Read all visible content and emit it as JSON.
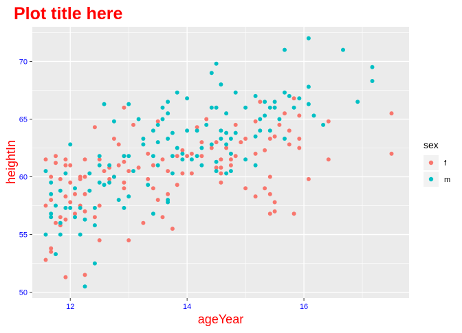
{
  "chart_data": {
    "type": "scatter",
    "title": "Plot title here",
    "xlabel": "ageYear",
    "ylabel": "heightIn",
    "xlim": [
      11.35,
      17.8
    ],
    "ylim": [
      49.5,
      73.0
    ],
    "xticks": [
      12,
      14,
      16
    ],
    "yticks": [
      50,
      55,
      60,
      65,
      70
    ],
    "grid": true,
    "legend": {
      "title": "sex",
      "position": "right",
      "entries": [
        "f",
        "m"
      ]
    },
    "colors": {
      "f": "#F8766D",
      "m": "#00BFC4",
      "title": "#FF0000",
      "axis_label": "#FF0000",
      "tick_label": "#0000FF",
      "panel": "#EBEBEB",
      "grid": "#FFFFFF"
    },
    "series": [
      {
        "name": "f",
        "points": [
          [
            11.58,
            52.8
          ],
          [
            11.58,
            57.5
          ],
          [
            11.58,
            61.5
          ],
          [
            11.67,
            53.5
          ],
          [
            11.67,
            53.8
          ],
          [
            11.67,
            58.0
          ],
          [
            11.67,
            60.0
          ],
          [
            11.75,
            56.0
          ],
          [
            11.75,
            61.2
          ],
          [
            11.75,
            61.8
          ],
          [
            11.83,
            55.8
          ],
          [
            11.83,
            56.5
          ],
          [
            11.83,
            59.8
          ],
          [
            11.92,
            51.3
          ],
          [
            11.92,
            56.3
          ],
          [
            11.92,
            58.3
          ],
          [
            11.92,
            61.0
          ],
          [
            11.92,
            61.5
          ],
          [
            12.0,
            57.8
          ],
          [
            12.0,
            59.5
          ],
          [
            12.0,
            61.0
          ],
          [
            12.08,
            56.8
          ],
          [
            12.08,
            58.5
          ],
          [
            12.17,
            57.5
          ],
          [
            12.17,
            59.8
          ],
          [
            12.17,
            60.0
          ],
          [
            12.25,
            51.5
          ],
          [
            12.25,
            57.0
          ],
          [
            12.25,
            58.5
          ],
          [
            12.25,
            60.0
          ],
          [
            12.25,
            61.5
          ],
          [
            12.42,
            56.5
          ],
          [
            12.42,
            64.3
          ],
          [
            12.5,
            54.5
          ],
          [
            12.5,
            57.5
          ],
          [
            12.5,
            61.5
          ],
          [
            12.58,
            60.5
          ],
          [
            12.67,
            59.8
          ],
          [
            12.67,
            60.8
          ],
          [
            12.75,
            60.0
          ],
          [
            12.75,
            63.3
          ],
          [
            12.83,
            61.0
          ],
          [
            12.83,
            62.8
          ],
          [
            12.92,
            59.0
          ],
          [
            12.92,
            59.5
          ],
          [
            12.92,
            61.3
          ],
          [
            12.92,
            61.8
          ],
          [
            12.92,
            66.0
          ],
          [
            13.0,
            54.5
          ],
          [
            13.0,
            60.5
          ],
          [
            13.08,
            64.5
          ],
          [
            13.17,
            60.8
          ],
          [
            13.25,
            56.0
          ],
          [
            13.33,
            59.8
          ],
          [
            13.33,
            62.0
          ],
          [
            13.42,
            59.0
          ],
          [
            13.42,
            61.0
          ],
          [
            13.5,
            58.0
          ],
          [
            13.5,
            64.8
          ],
          [
            13.58,
            56.5
          ],
          [
            13.58,
            61.5
          ],
          [
            13.67,
            58.5
          ],
          [
            13.67,
            60.5
          ],
          [
            13.75,
            55.5
          ],
          [
            13.83,
            59.3
          ],
          [
            13.83,
            61.8
          ],
          [
            13.92,
            60.3
          ],
          [
            13.92,
            62.3
          ],
          [
            14.0,
            61.8
          ],
          [
            14.08,
            60.3
          ],
          [
            14.08,
            62.0
          ],
          [
            14.17,
            64.3
          ],
          [
            14.25,
            61.8
          ],
          [
            14.25,
            63.0
          ],
          [
            14.33,
            65.0
          ],
          [
            14.42,
            62.5
          ],
          [
            14.5,
            60.8
          ],
          [
            14.5,
            63.0
          ],
          [
            14.58,
            59.5
          ],
          [
            14.58,
            60.3
          ],
          [
            14.58,
            60.8
          ],
          [
            14.58,
            61.5
          ],
          [
            14.67,
            62.5
          ],
          [
            14.75,
            61.0
          ],
          [
            14.75,
            61.5
          ],
          [
            14.75,
            62.0
          ],
          [
            14.83,
            61.8
          ],
          [
            14.83,
            64.5
          ],
          [
            14.92,
            63.0
          ],
          [
            15.0,
            59.0
          ],
          [
            15.0,
            63.3
          ],
          [
            15.17,
            58.3
          ],
          [
            15.17,
            62.0
          ],
          [
            15.17,
            64.8
          ],
          [
            15.25,
            66.5
          ],
          [
            15.33,
            59.0
          ],
          [
            15.33,
            62.3
          ],
          [
            15.42,
            56.8
          ],
          [
            15.42,
            58.5
          ],
          [
            15.42,
            60.0
          ],
          [
            15.42,
            63.3
          ],
          [
            15.5,
            57.0
          ],
          [
            15.5,
            57.8
          ],
          [
            15.5,
            63.5
          ],
          [
            15.58,
            64.5
          ],
          [
            15.67,
            65.5
          ],
          [
            15.75,
            62.8
          ],
          [
            15.75,
            64.0
          ],
          [
            15.83,
            56.8
          ],
          [
            15.83,
            66.8
          ],
          [
            15.92,
            62.5
          ],
          [
            15.92,
            63.3
          ],
          [
            15.92,
            65.3
          ],
          [
            16.08,
            59.8
          ],
          [
            16.42,
            61.5
          ],
          [
            16.42,
            64.8
          ],
          [
            17.5,
            62.0
          ],
          [
            17.5,
            65.5
          ]
        ]
      },
      {
        "name": "m",
        "points": [
          [
            11.58,
            55.0
          ],
          [
            11.58,
            60.5
          ],
          [
            11.67,
            56.5
          ],
          [
            11.67,
            56.8
          ],
          [
            11.67,
            58.5
          ],
          [
            11.67,
            59.5
          ],
          [
            11.75,
            53.3
          ],
          [
            11.75,
            57.5
          ],
          [
            11.83,
            55.0
          ],
          [
            11.83,
            56.0
          ],
          [
            11.83,
            58.8
          ],
          [
            11.92,
            57.3
          ],
          [
            11.92,
            60.3
          ],
          [
            12.0,
            57.3
          ],
          [
            12.0,
            62.8
          ],
          [
            12.08,
            56.5
          ],
          [
            12.08,
            59.0
          ],
          [
            12.17,
            55.0
          ],
          [
            12.17,
            57.3
          ],
          [
            12.25,
            50.5
          ],
          [
            12.25,
            56.3
          ],
          [
            12.33,
            58.8
          ],
          [
            12.33,
            60.3
          ],
          [
            12.42,
            52.5
          ],
          [
            12.42,
            55.8
          ],
          [
            12.42,
            57.3
          ],
          [
            12.5,
            59.5
          ],
          [
            12.5,
            61.0
          ],
          [
            12.5,
            61.8
          ],
          [
            12.58,
            59.3
          ],
          [
            12.58,
            66.3
          ],
          [
            12.67,
            59.5
          ],
          [
            12.67,
            61.0
          ],
          [
            12.75,
            60.0
          ],
          [
            12.75,
            64.8
          ],
          [
            12.83,
            58.0
          ],
          [
            12.92,
            57.3
          ],
          [
            12.92,
            61.8
          ],
          [
            13.0,
            58.3
          ],
          [
            13.0,
            61.8
          ],
          [
            13.0,
            66.3
          ],
          [
            13.08,
            60.5
          ],
          [
            13.17,
            65.0
          ],
          [
            13.25,
            62.8
          ],
          [
            13.25,
            63.3
          ],
          [
            13.33,
            59.3
          ],
          [
            13.42,
            56.8
          ],
          [
            13.42,
            61.8
          ],
          [
            13.42,
            64.0
          ],
          [
            13.5,
            61.0
          ],
          [
            13.5,
            63.0
          ],
          [
            13.5,
            64.5
          ],
          [
            13.58,
            65.0
          ],
          [
            13.58,
            66.0
          ],
          [
            13.67,
            57.8
          ],
          [
            13.67,
            58.0
          ],
          [
            13.67,
            63.3
          ],
          [
            13.67,
            65.5
          ],
          [
            13.67,
            66.5
          ],
          [
            13.75,
            60.3
          ],
          [
            13.75,
            61.8
          ],
          [
            13.75,
            63.8
          ],
          [
            13.83,
            62.5
          ],
          [
            13.83,
            67.3
          ],
          [
            13.92,
            61.5
          ],
          [
            13.92,
            62.0
          ],
          [
            14.0,
            64.0
          ],
          [
            14.0,
            66.8
          ],
          [
            14.08,
            61.5
          ],
          [
            14.17,
            61.8
          ],
          [
            14.17,
            64.0
          ],
          [
            14.25,
            61.0
          ],
          [
            14.25,
            62.5
          ],
          [
            14.33,
            64.5
          ],
          [
            14.42,
            62.8
          ],
          [
            14.42,
            66.0
          ],
          [
            14.42,
            69.0
          ],
          [
            14.5,
            60.5
          ],
          [
            14.5,
            61.3
          ],
          [
            14.5,
            66.0
          ],
          [
            14.5,
            69.8
          ],
          [
            14.58,
            63.3
          ],
          [
            14.58,
            64.0
          ],
          [
            14.58,
            68.0
          ],
          [
            14.67,
            60.3
          ],
          [
            14.67,
            62.8
          ],
          [
            14.67,
            63.8
          ],
          [
            14.67,
            65.5
          ],
          [
            14.75,
            60.5
          ],
          [
            14.75,
            62.0
          ],
          [
            14.75,
            63.3
          ],
          [
            14.83,
            63.8
          ],
          [
            14.83,
            67.3
          ],
          [
            15.0,
            61.5
          ],
          [
            15.0,
            66.0
          ],
          [
            15.17,
            61.0
          ],
          [
            15.17,
            63.5
          ],
          [
            15.17,
            67.0
          ],
          [
            15.25,
            64.0
          ],
          [
            15.25,
            65.0
          ],
          [
            15.33,
            65.3
          ],
          [
            15.33,
            66.5
          ],
          [
            15.42,
            64.0
          ],
          [
            15.42,
            66.0
          ],
          [
            15.5,
            66.0
          ],
          [
            15.5,
            66.5
          ],
          [
            15.58,
            65.0
          ],
          [
            15.67,
            63.3
          ],
          [
            15.67,
            67.3
          ],
          [
            15.67,
            71.0
          ],
          [
            15.75,
            67.0
          ],
          [
            15.83,
            66.0
          ],
          [
            15.92,
            66.8
          ],
          [
            16.08,
            66.3
          ],
          [
            16.08,
            67.8
          ],
          [
            16.08,
            72.0
          ],
          [
            16.17,
            65.3
          ],
          [
            16.33,
            64.5
          ],
          [
            16.67,
            71.0
          ],
          [
            16.92,
            66.5
          ],
          [
            17.17,
            68.3
          ],
          [
            17.17,
            69.5
          ]
        ]
      }
    ]
  }
}
